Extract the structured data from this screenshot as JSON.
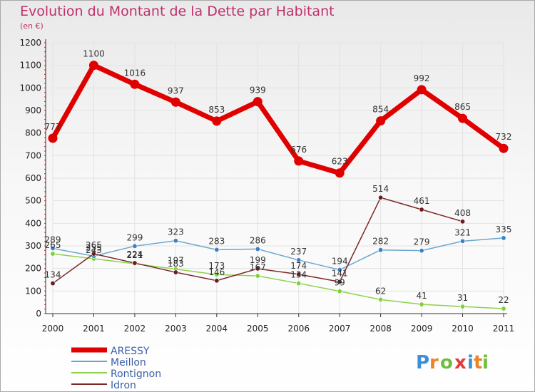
{
  "title": "Evolution du Montant de la Dette par Habitant",
  "unit_label": "(en €)",
  "colors": {
    "title": "#c0306a",
    "ARESSY": "#e00000",
    "Meillon": "#6aa6cf",
    "Rontignon": "#8ed14d",
    "Idron": "#7a2828",
    "axis": "#333333",
    "grid": "#e2e2e2"
  },
  "chart_data": {
    "type": "line",
    "title": "Evolution du Montant de la Dette par Habitant",
    "ylabel": "(en €)",
    "xlabel": "",
    "x": [
      "2000",
      "2001",
      "2002",
      "2003",
      "2004",
      "2005",
      "2006",
      "2007",
      "2008",
      "2009",
      "2010",
      "2011"
    ],
    "ylim": [
      0,
      1200
    ],
    "yticks": [
      0,
      100,
      200,
      300,
      400,
      500,
      600,
      700,
      800,
      900,
      1000,
      1100,
      1200
    ],
    "grid": true,
    "legend_position": "bottom-left",
    "series": [
      {
        "name": "ARESSY",
        "values": [
          777,
          1100,
          1016,
          937,
          853,
          939,
          676,
          623,
          854,
          992,
          865,
          732
        ]
      },
      {
        "name": "Meillon",
        "values": [
          289,
          255,
          299,
          323,
          283,
          286,
          237,
          194,
          282,
          279,
          321,
          335
        ]
      },
      {
        "name": "Rontignon",
        "values": [
          265,
          243,
          221,
          197,
          173,
          167,
          134,
          99,
          62,
          41,
          31,
          22
        ]
      },
      {
        "name": "Idron",
        "values": [
          134,
          265,
          224,
          183,
          146,
          199,
          174,
          141,
          514,
          461,
          408,
          null
        ]
      }
    ]
  },
  "legend": {
    "items": [
      "ARESSY",
      "Meillon",
      "Rontignon",
      "Idron"
    ]
  },
  "logo": {
    "text": "Proxiti"
  }
}
